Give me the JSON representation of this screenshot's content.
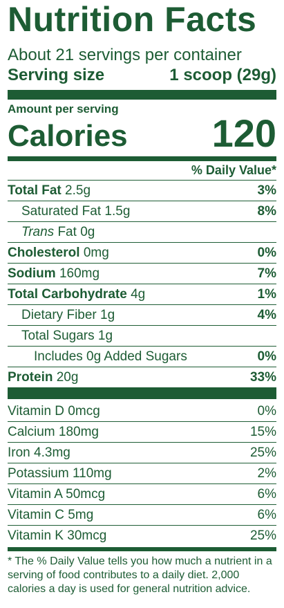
{
  "title": "Nutrition Facts",
  "servings_per_container": "About 21 servings per container",
  "serving_size_label": "Serving size",
  "serving_size_value": "1 scoop (29g)",
  "amount_per_serving": "Amount per serving",
  "calories_label": "Calories",
  "calories_value": "120",
  "daily_value_header": "% Daily Value*",
  "nutrients": {
    "total_fat": {
      "name": "Total Fat",
      "amount": "2.5g",
      "dv": "3%"
    },
    "saturated_fat": {
      "name": "Saturated Fat",
      "amount": "1.5g",
      "dv": "8%"
    },
    "trans_fat": {
      "name_italic": "Trans",
      "name_rest": "Fat",
      "amount": "0g",
      "dv": ""
    },
    "cholesterol": {
      "name": "Cholesterol",
      "amount": "0mg",
      "dv": "0%"
    },
    "sodium": {
      "name": "Sodium",
      "amount": "160mg",
      "dv": "7%"
    },
    "total_carbohydrate": {
      "name": "Total Carbohydrate",
      "amount": "4g",
      "dv": "1%"
    },
    "dietary_fiber": {
      "name": "Dietary Fiber",
      "amount": "1g",
      "dv": "4%"
    },
    "total_sugars": {
      "name": "Total Sugars",
      "amount": "1g",
      "dv": ""
    },
    "added_sugars": {
      "name": "Includes 0g Added Sugars",
      "dv": "0%"
    },
    "protein": {
      "name": "Protein",
      "amount": "20g",
      "dv": "33%"
    }
  },
  "vitamins": [
    {
      "name": "Vitamin D",
      "amount": "0mcg",
      "dv": "0%"
    },
    {
      "name": "Calcium",
      "amount": "180mg",
      "dv": "15%"
    },
    {
      "name": "Iron",
      "amount": "4.3mg",
      "dv": "25%"
    },
    {
      "name": "Potassium",
      "amount": "110mg",
      "dv": "2%"
    },
    {
      "name": "Vitamin A",
      "amount": "50mcg",
      "dv": "6%"
    },
    {
      "name": "Vitamin C",
      "amount": "5mg",
      "dv": "6%"
    },
    {
      "name": "Vitamin K",
      "amount": "30mcg",
      "dv": "25%"
    }
  ],
  "footnote": "* The % Daily Value tells you how much a nutrient in a serving of food contributes to a daily diet. 2,000 calories a day is used for general nutrition advice.",
  "colors": {
    "ink": "#1d5c34",
    "background": "#ffffff"
  }
}
